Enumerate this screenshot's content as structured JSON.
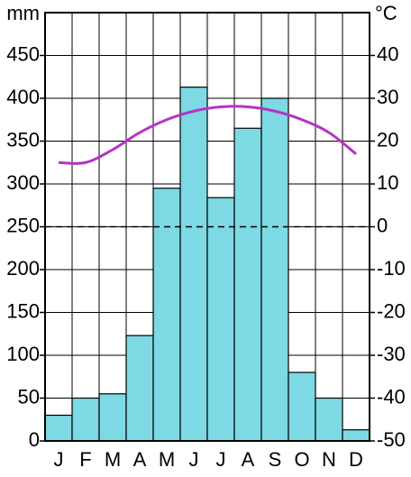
{
  "chart_data": {
    "type": "climograph",
    "y_label": "mm",
    "y2_label": "°C",
    "categories": [
      "J",
      "F",
      "M",
      "A",
      "M",
      "J",
      "J",
      "A",
      "S",
      "O",
      "N",
      "D"
    ],
    "series": [
      {
        "type": "bar",
        "color": "#7dd9e3",
        "values": [
          30,
          50,
          55,
          123,
          295,
          413,
          284,
          365,
          400,
          80,
          50,
          13
        ]
      },
      {
        "type": "line",
        "axis": "y2",
        "color": "#b533c4",
        "values": [
          15,
          15,
          18,
          22,
          25,
          27,
          28,
          28,
          27,
          25,
          22,
          17
        ]
      }
    ],
    "ylim": [
      0,
      500
    ],
    "yticks": [
      0,
      50,
      100,
      150,
      200,
      250,
      300,
      350,
      400,
      450
    ],
    "y2lim": [
      -50,
      50
    ],
    "y2ticks": [
      -50,
      -40,
      -30,
      -20,
      -10,
      0,
      10,
      20,
      30,
      40
    ],
    "y2_dashed_line": 0,
    "grid": true
  }
}
